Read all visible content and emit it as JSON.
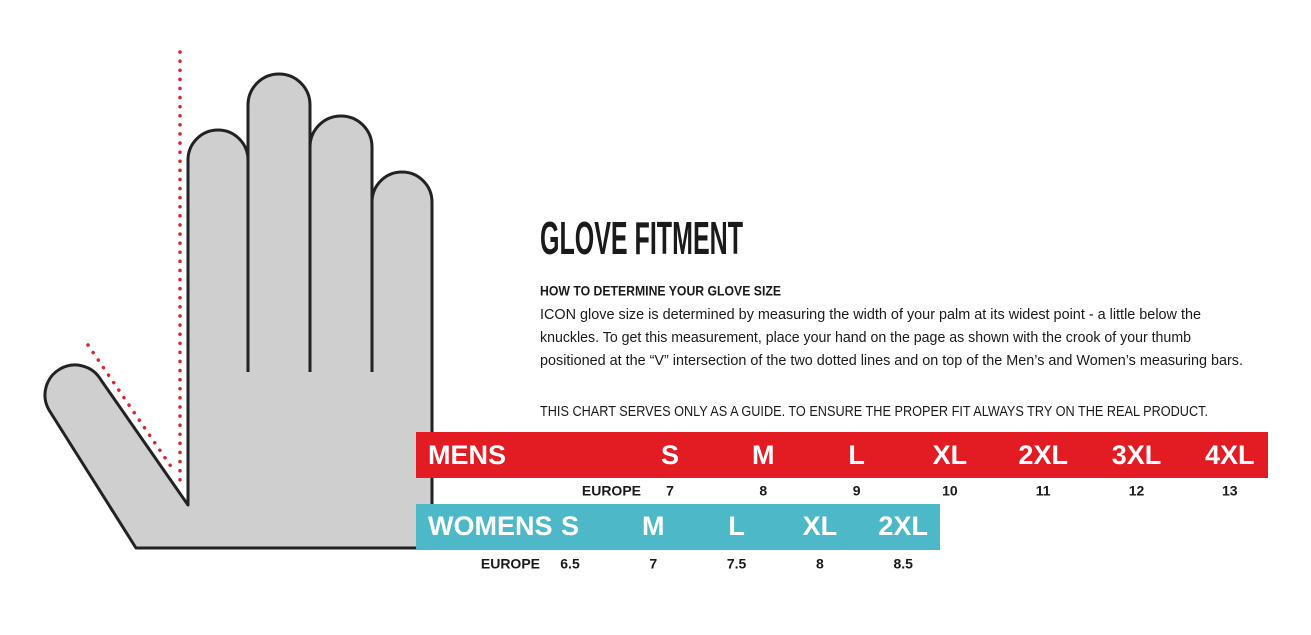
{
  "header": {
    "title": "GLOVE FITMENT",
    "subtitle": "HOW TO DETERMINE YOUR GLOVE SIZE"
  },
  "body": {
    "lines": [
      "ICON glove size is determined by measuring the width of your palm at its widest point - a little below the",
      "knuckles. To get this measurement, place your hand on the page as shown with the crook of your thumb",
      "positioned at the “V” intersection of the two dotted lines and on top of the Men’s and Women’s measuring bars."
    ],
    "disclaimer": "THIS CHART SERVES ONLY AS A GUIDE. TO ENSURE THE PROPER FIT ALWAYS TRY ON THE REAL PRODUCT."
  },
  "mens": {
    "label": "MENS",
    "sizes": [
      "S",
      "M",
      "L",
      "XL",
      "2XL",
      "3XL",
      "4XL"
    ],
    "europe_label": "EUROPE",
    "europe": [
      "7",
      "8",
      "9",
      "10",
      "11",
      "12",
      "13"
    ]
  },
  "womens": {
    "label": "WOMENS",
    "sizes": [
      "S",
      "M",
      "L",
      "XL",
      "2XL"
    ],
    "europe_label": "EUROPE",
    "europe": [
      "6.5",
      "7",
      "7.5",
      "8",
      "8.5"
    ]
  }
}
